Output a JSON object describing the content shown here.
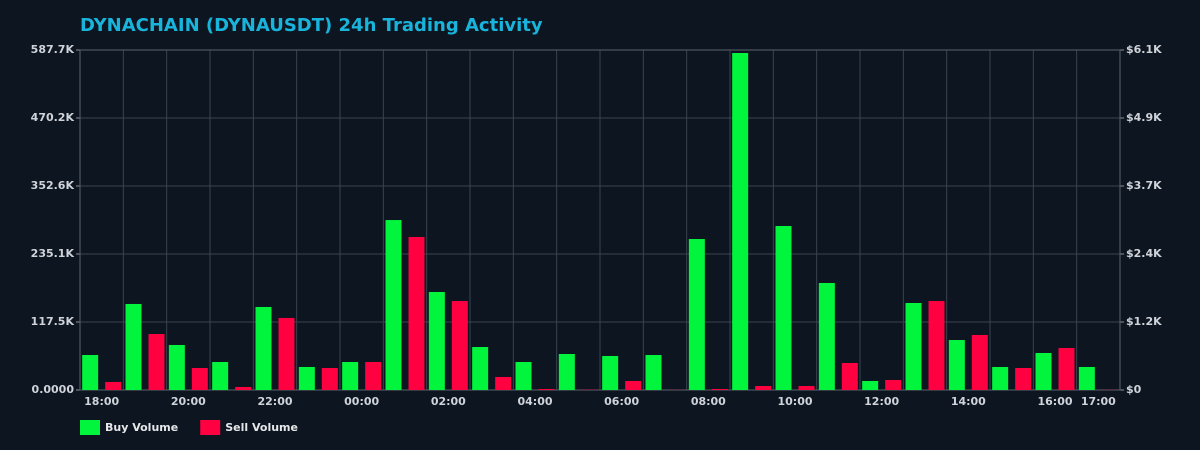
{
  "chart_data": {
    "type": "bar",
    "title": "DYNACHAIN (DYNAUSDT) 24h Trading Activity",
    "categories": [
      "18:00",
      null,
      "20:00",
      null,
      "22:00",
      null,
      "00:00",
      null,
      "02:00",
      null,
      "04:00",
      null,
      "06:00",
      null,
      "08:00",
      null,
      "10:00",
      null,
      "12:00",
      null,
      "14:00",
      null,
      "16:00",
      "17:00"
    ],
    "series": [
      {
        "name": "Buy Volume",
        "color": "#00f53c",
        "values": [
          60500,
          148700,
          77800,
          48400,
          143500,
          39800,
          48400,
          293800,
          169400,
          74300,
          48400,
          62200,
          58800,
          60500,
          261000,
          582500,
          283500,
          185000,
          15600,
          150400,
          86400,
          39800,
          64000,
          39800
        ]
      },
      {
        "name": "Sell Volume",
        "color": "#ff0040",
        "values": [
          13800,
          96800,
          38000,
          5200,
          124500,
          38000,
          48400,
          264500,
          153800,
          22500,
          1700,
          500,
          15600,
          300,
          1700,
          6900,
          6900,
          46700,
          17300,
          153800,
          95100,
          38000,
          72600,
          300
        ]
      }
    ],
    "ylim": [
      0,
      587700
    ],
    "yticks": [
      {
        "value": 0,
        "label": "0.0000"
      },
      {
        "value": 117540,
        "label": "117.5K"
      },
      {
        "value": 235080,
        "label": "235.1K"
      },
      {
        "value": 352620,
        "label": "352.6K"
      },
      {
        "value": 470160,
        "label": "470.2K"
      },
      {
        "value": 587700,
        "label": "587.7K"
      }
    ],
    "y2lim": [
      0,
      6100
    ],
    "y2ticks": [
      {
        "value": 0,
        "label": "$0"
      },
      {
        "value": 1220,
        "label": "$1.2K"
      },
      {
        "value": 2440,
        "label": "$2.4K"
      },
      {
        "value": 3660,
        "label": "$3.7K"
      },
      {
        "value": 4880,
        "label": "$4.9K"
      },
      {
        "value": 6100,
        "label": "$6.1K"
      }
    ],
    "grid": true,
    "legend": "bottom-left"
  }
}
